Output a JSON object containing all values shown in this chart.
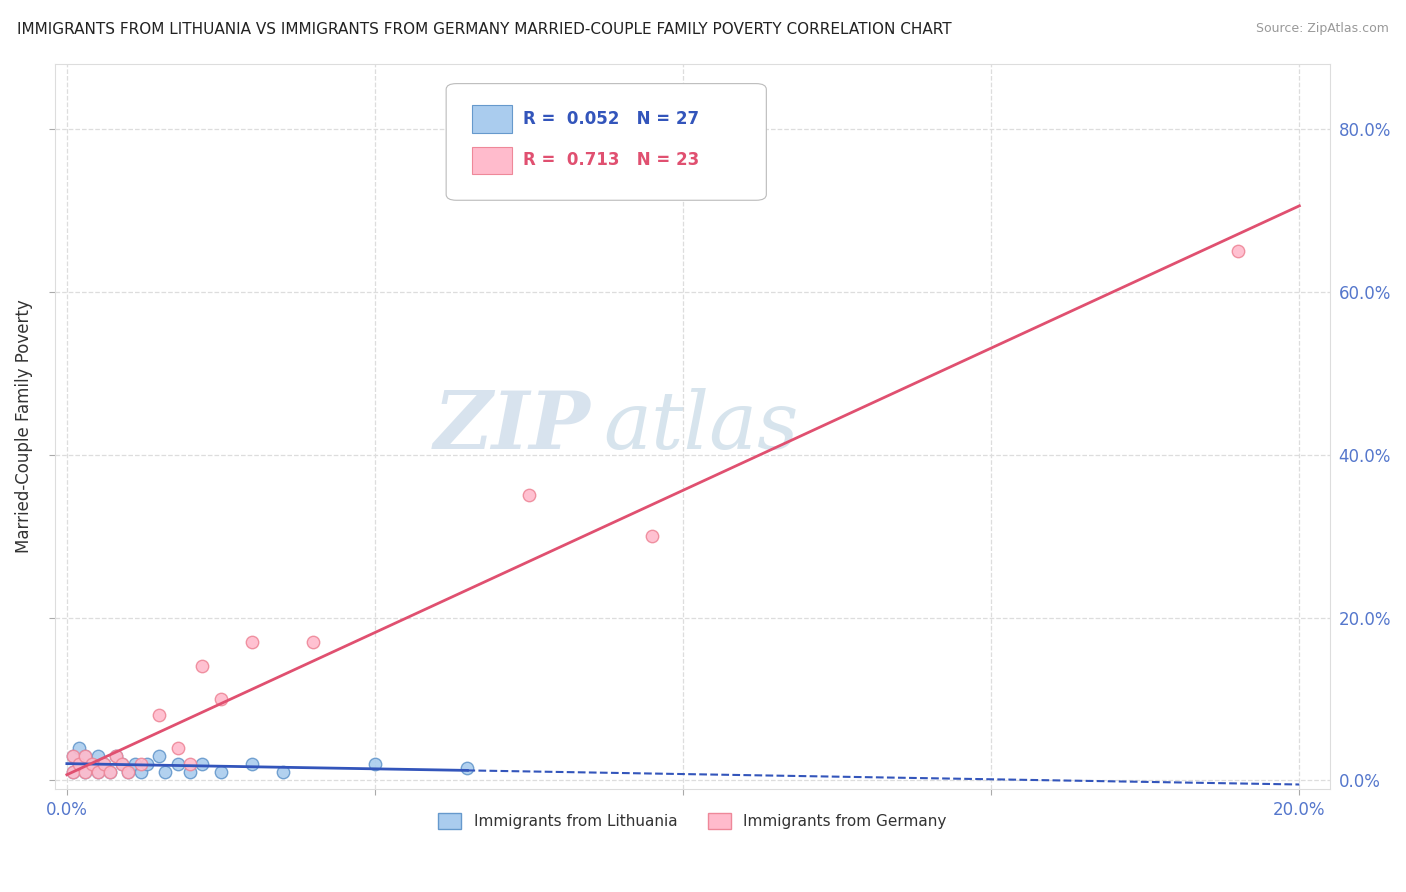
{
  "title": "IMMIGRANTS FROM LITHUANIA VS IMMIGRANTS FROM GERMANY MARRIED-COUPLE FAMILY POVERTY CORRELATION CHART",
  "source": "Source: ZipAtlas.com",
  "ylabel": "Married-Couple Family Poverty",
  "x_tick_labels": [
    "0.0%",
    "",
    "",
    "",
    "20.0%"
  ],
  "x_tick_values": [
    0.0,
    0.05,
    0.1,
    0.15,
    0.2
  ],
  "y_tick_labels": [
    "0.0%",
    "20.0%",
    "40.0%",
    "60.0%",
    "80.0%"
  ],
  "y_tick_values": [
    0.0,
    0.2,
    0.4,
    0.6,
    0.8
  ],
  "xlim": [
    -0.002,
    0.205
  ],
  "ylim": [
    -0.01,
    0.88
  ],
  "watermark_zip": "ZIP",
  "watermark_atlas": "atlas",
  "background_color": "#ffffff",
  "grid_color": "#dddddd",
  "lithuania_x": [
    0.001,
    0.001,
    0.002,
    0.002,
    0.003,
    0.003,
    0.004,
    0.005,
    0.005,
    0.006,
    0.007,
    0.008,
    0.009,
    0.01,
    0.011,
    0.012,
    0.013,
    0.015,
    0.016,
    0.018,
    0.02,
    0.022,
    0.025,
    0.03,
    0.035,
    0.05,
    0.065
  ],
  "lithuania_y": [
    0.03,
    0.01,
    0.02,
    0.04,
    0.01,
    0.03,
    0.02,
    0.01,
    0.03,
    0.02,
    0.01,
    0.03,
    0.02,
    0.01,
    0.02,
    0.01,
    0.02,
    0.03,
    0.01,
    0.02,
    0.01,
    0.02,
    0.01,
    0.02,
    0.01,
    0.02,
    0.015
  ],
  "germany_x": [
    0.001,
    0.001,
    0.002,
    0.003,
    0.003,
    0.004,
    0.005,
    0.006,
    0.007,
    0.008,
    0.009,
    0.01,
    0.012,
    0.015,
    0.018,
    0.02,
    0.022,
    0.025,
    0.03,
    0.04,
    0.075,
    0.095,
    0.19
  ],
  "germany_y": [
    0.01,
    0.03,
    0.02,
    0.01,
    0.03,
    0.02,
    0.01,
    0.02,
    0.01,
    0.03,
    0.02,
    0.01,
    0.02,
    0.08,
    0.04,
    0.02,
    0.14,
    0.1,
    0.17,
    0.17,
    0.35,
    0.3,
    0.65
  ],
  "lithuania_line_color": "#3355bb",
  "germany_line_color": "#e05070",
  "marker_size": 80,
  "lithuania_marker_color": "#aaccee",
  "lithuania_marker_edge": "#6699cc",
  "germany_marker_color": "#ffbbcc",
  "germany_marker_edge": "#ee8899",
  "tick_color": "#5577cc",
  "axis_label_color": "#333333"
}
